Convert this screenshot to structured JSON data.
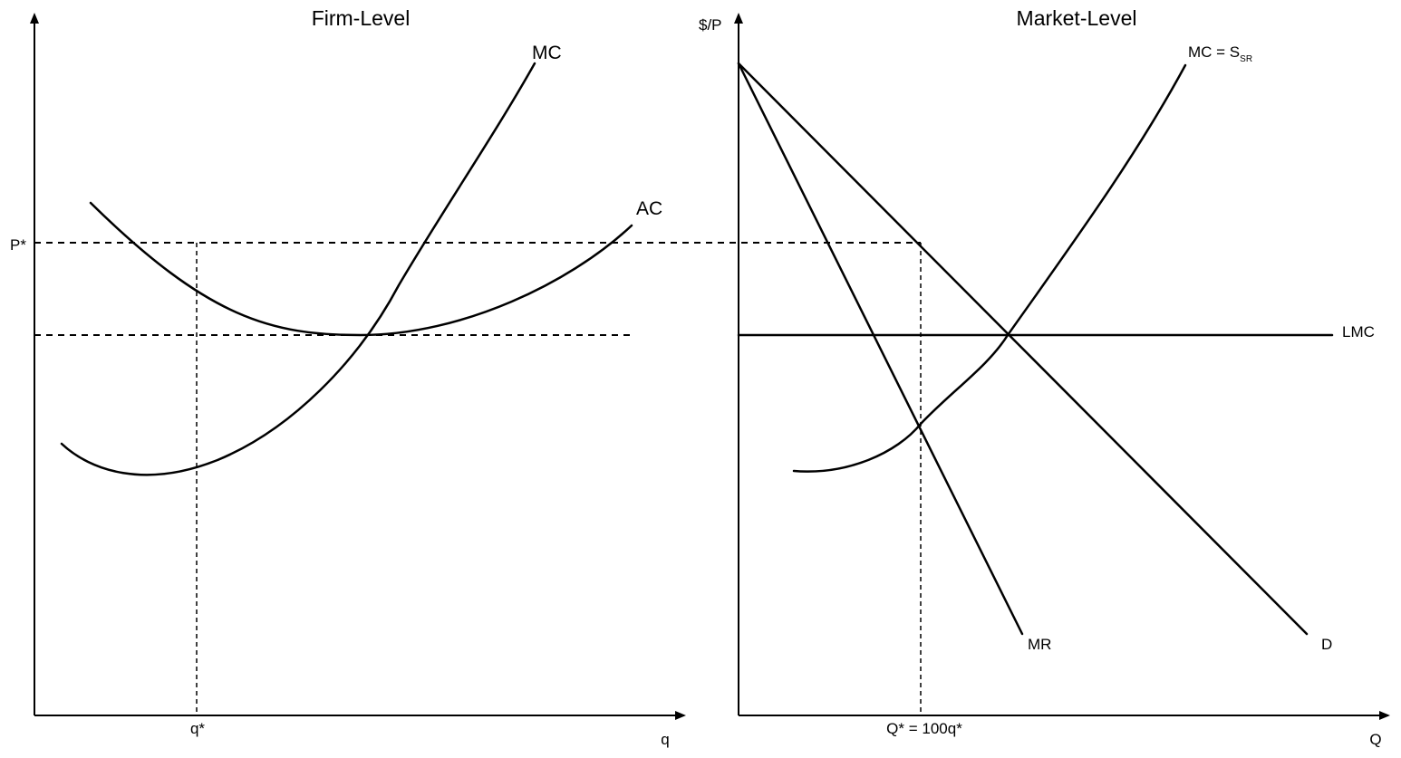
{
  "panels": {
    "firm": {
      "title": "Firm-Level",
      "price_label": "P*",
      "quantity_marker": "q*",
      "x_axis_label": "q",
      "curves": {
        "mc": "MC",
        "ac": "AC"
      }
    },
    "market": {
      "title": "Market-Level",
      "y_axis_label": "$/P",
      "quantity_marker": "Q* = 100q*",
      "x_axis_label": "Q",
      "curves": {
        "mc_supply": "MC = S",
        "mc_supply_subscript": "SR",
        "lmc": "LMC",
        "mr": "MR",
        "demand": "D"
      }
    }
  },
  "colors": {
    "ink": "#000000",
    "background": "#ffffff"
  }
}
